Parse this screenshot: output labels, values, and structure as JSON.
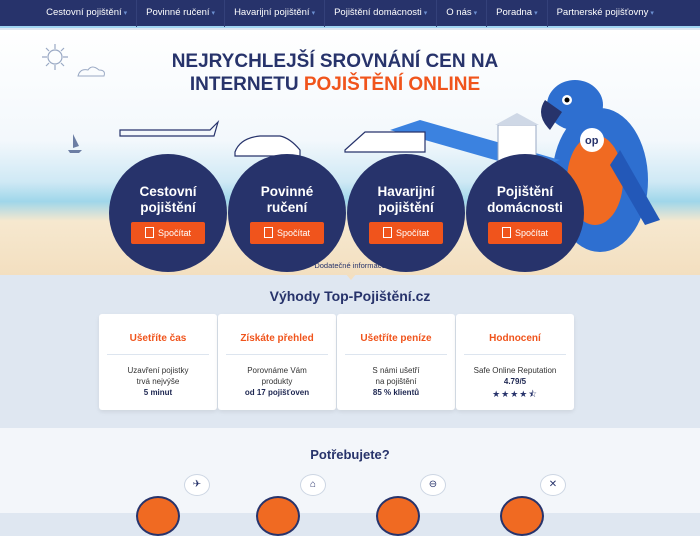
{
  "nav": {
    "items": [
      {
        "label": "Cestovní pojištění",
        "dropdown": true
      },
      {
        "label": "Povinné ručení",
        "dropdown": true
      },
      {
        "label": "Havarijní pojištění",
        "dropdown": true
      },
      {
        "label": "Pojištění domácnosti",
        "dropdown": true
      },
      {
        "label": "O nás",
        "dropdown": true
      },
      {
        "label": "Poradna",
        "dropdown": true
      },
      {
        "label": "Partnerské pojišťovny",
        "dropdown": true
      }
    ],
    "caret": "▾"
  },
  "hero": {
    "title_line1": "NEJRYCHLEJŠÍ SROVNÁNÍ CEN NA",
    "title_line2a": "INTERNETU ",
    "title_line2b": "POJIŠTĚNÍ ONLINE",
    "products": [
      {
        "l1": "Cestovní",
        "l2": "pojištění",
        "button": "Spočítat",
        "icon": "airplane-icon"
      },
      {
        "l1": "Povinné",
        "l2": "ručení",
        "button": "Spočítat",
        "icon": "car-icon"
      },
      {
        "l1": "Havarijní",
        "l2": "pojištění",
        "button": "Spočítat",
        "icon": "crashed-cars-icon"
      },
      {
        "l1": "Pojištění",
        "l2": "domácnosti",
        "button": "Spočítat",
        "icon": "house-icon"
      }
    ],
    "more": "Dodatečné informace",
    "colors": {
      "navy": "#27336b",
      "orange": "#f0541c"
    }
  },
  "benefits": {
    "title": "Výhody Top-Pojištění.cz",
    "cards": [
      {
        "title": "Ušetříte čas",
        "l1": "Uzavření pojistky",
        "l2": "trvá nejvýše",
        "bold": "5 minut"
      },
      {
        "title": "Získáte přehled",
        "l1": "Porovnáme Vám",
        "l2": "produkty",
        "bold": "od 17 pojišťoven"
      },
      {
        "title": "Ušetříte peníze",
        "l1": "S námi ušetří",
        "l2": "na pojištění",
        "bold": "85 % klientů"
      },
      {
        "title": "Hodnocení",
        "l1": "Safe Online Reputation",
        "l2": "4.79/5",
        "stars": "★★★★⯪",
        "rating": 4.79
      }
    ]
  },
  "needs": {
    "title": "Potřebujete?",
    "bubbles": [
      "airplane-icon",
      "house-icon",
      "car-icon",
      "crash-icon"
    ]
  }
}
